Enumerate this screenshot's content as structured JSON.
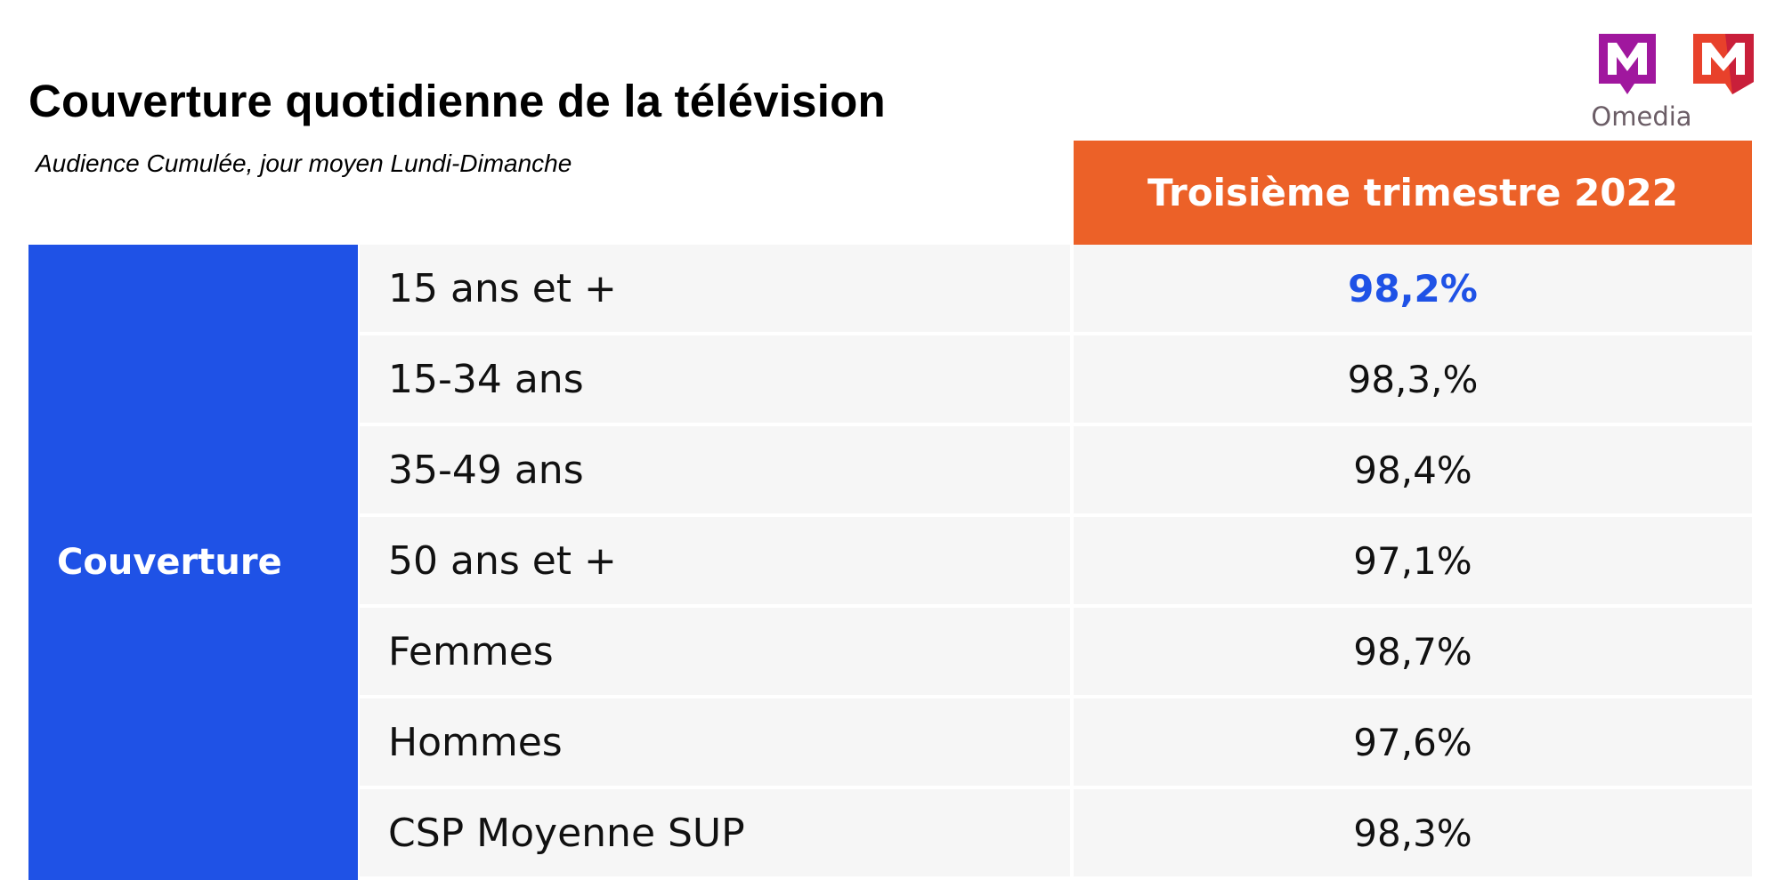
{
  "title": "Couverture quotidienne de la télévision",
  "subtitle": "Audience Cumulée, jour moyen Lundi-Dimanche",
  "logos": {
    "omedia_label": "Omedia",
    "brand_colors": {
      "omedia": "#a0179e",
      "second": "#e8412b"
    }
  },
  "table": {
    "column_header": "Troisième trimestre 2022",
    "row_group_label": "Couverture",
    "rows": [
      {
        "label": "15 ans et +",
        "value": "98,2%"
      },
      {
        "label": "15-34 ans",
        "value": "98,3,%"
      },
      {
        "label": "35-49 ans",
        "value": "98,4%"
      },
      {
        "label": "50 ans et +",
        "value": "97,1%"
      },
      {
        "label": "Femmes",
        "value": "98,7%"
      },
      {
        "label": "Hommes",
        "value": "97,6%"
      },
      {
        "label": "CSP Moyenne SUP",
        "value": "98,3%"
      }
    ]
  },
  "colors": {
    "header_orange": "#ec6128",
    "group_blue": "#1f52e6",
    "row_bg": "#f6f6f6",
    "highlight_value": "#1f52e6"
  }
}
